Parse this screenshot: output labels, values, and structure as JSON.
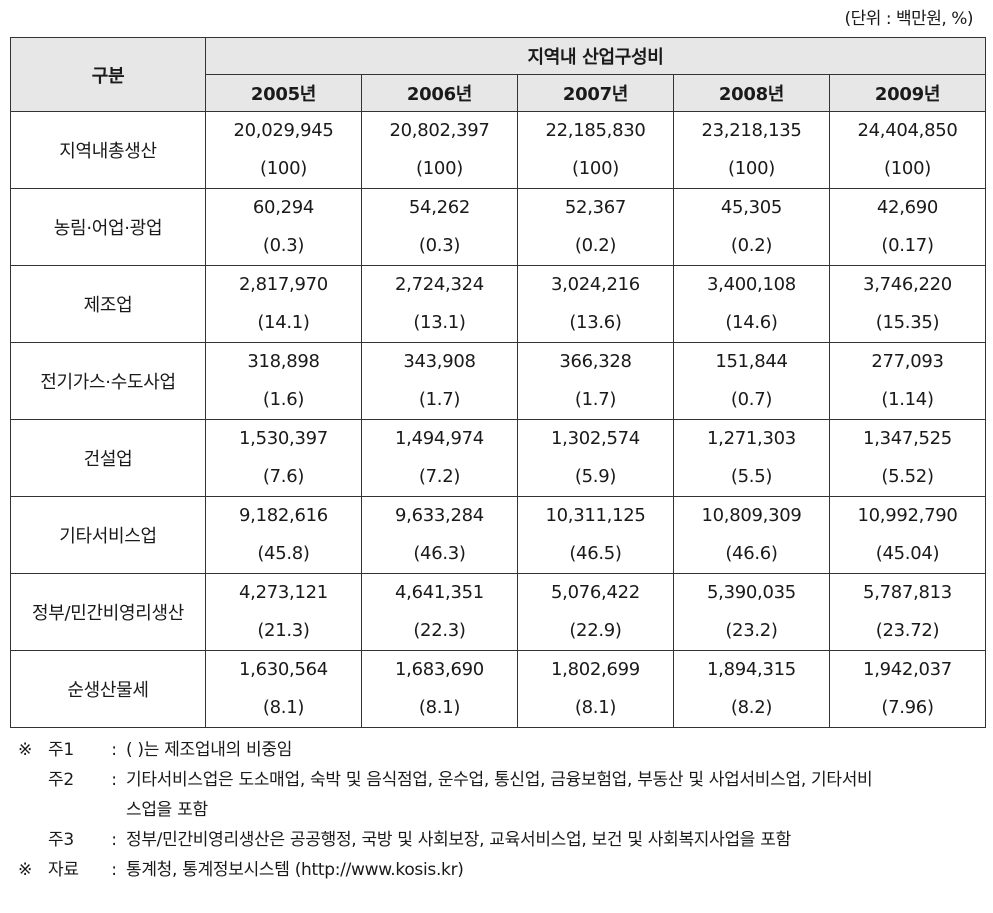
{
  "unit_label": "(단위 : 백만원, %)",
  "table": {
    "corner_label": "구분",
    "group_header": "지역내 산업구성비",
    "years": [
      "2005년",
      "2006년",
      "2007년",
      "2008년",
      "2009년"
    ],
    "rows": [
      {
        "label": "지역내총생산",
        "values": [
          "20,029,945",
          "20,802,397",
          "22,185,830",
          "23,218,135",
          "24,404,850"
        ],
        "shares": [
          "(100)",
          "(100)",
          "(100)",
          "(100)",
          "(100)"
        ]
      },
      {
        "label": "농림·어업·광업",
        "values": [
          "60,294",
          "54,262",
          "52,367",
          "45,305",
          "42,690"
        ],
        "shares": [
          "(0.3)",
          "(0.3)",
          "(0.2)",
          "(0.2)",
          "(0.17)"
        ]
      },
      {
        "label": "제조업",
        "values": [
          "2,817,970",
          "2,724,324",
          "3,024,216",
          "3,400,108",
          "3,746,220"
        ],
        "shares": [
          "(14.1)",
          "(13.1)",
          "(13.6)",
          "(14.6)",
          "(15.35)"
        ]
      },
      {
        "label": "전기가스·수도사업",
        "values": [
          "318,898",
          "343,908",
          "366,328",
          "151,844",
          "277,093"
        ],
        "shares": [
          "(1.6)",
          "(1.7)",
          "(1.7)",
          "(0.7)",
          "(1.14)"
        ]
      },
      {
        "label": "건설업",
        "values": [
          "1,530,397",
          "1,494,974",
          "1,302,574",
          "1,271,303",
          "1,347,525"
        ],
        "shares": [
          "(7.6)",
          "(7.2)",
          "(5.9)",
          "(5.5)",
          "(5.52)"
        ]
      },
      {
        "label": "기타서비스업",
        "values": [
          "9,182,616",
          "9,633,284",
          "10,311,125",
          "10,809,309",
          "10,992,790"
        ],
        "shares": [
          "(45.8)",
          "(46.3)",
          "(46.5)",
          "(46.6)",
          "(45.04)"
        ]
      },
      {
        "label": "정부/민간비영리생산",
        "values": [
          "4,273,121",
          "4,641,351",
          "5,076,422",
          "5,390,035",
          "5,787,813"
        ],
        "shares": [
          "(21.3)",
          "(22.3)",
          "(22.9)",
          "(23.2)",
          "(23.72)"
        ]
      },
      {
        "label": "순생산물세",
        "values": [
          "1,630,564",
          "1,683,690",
          "1,802,699",
          "1,894,315",
          "1,942,037"
        ],
        "shares": [
          "(8.1)",
          "(8.1)",
          "(8.1)",
          "(8.2)",
          "(7.96)"
        ]
      }
    ]
  },
  "notes": {
    "note_mark": "※",
    "note1_key": "주1",
    "note1_text": "(   )는 제조업내의 비중임",
    "note2_key": "주2",
    "note2_text": "기타서비스업은 도소매업, 숙박 및 음식점업, 운수업, 통신업, 금융보험업, 부동산 및 사업서비스업, 기타서비",
    "note2_cont": "스업을 포함",
    "note3_key": "주3",
    "note3_text": "정부/민간비영리생산은 공공행정, 국방 및 사회보장, 교육서비스업, 보건 및 사회복지사업을 포함",
    "source_mark": "※",
    "source_key": "자료",
    "source_text": "통계청, 통계정보시스템 (http://www.kosis.kr)",
    "separator": ":"
  }
}
